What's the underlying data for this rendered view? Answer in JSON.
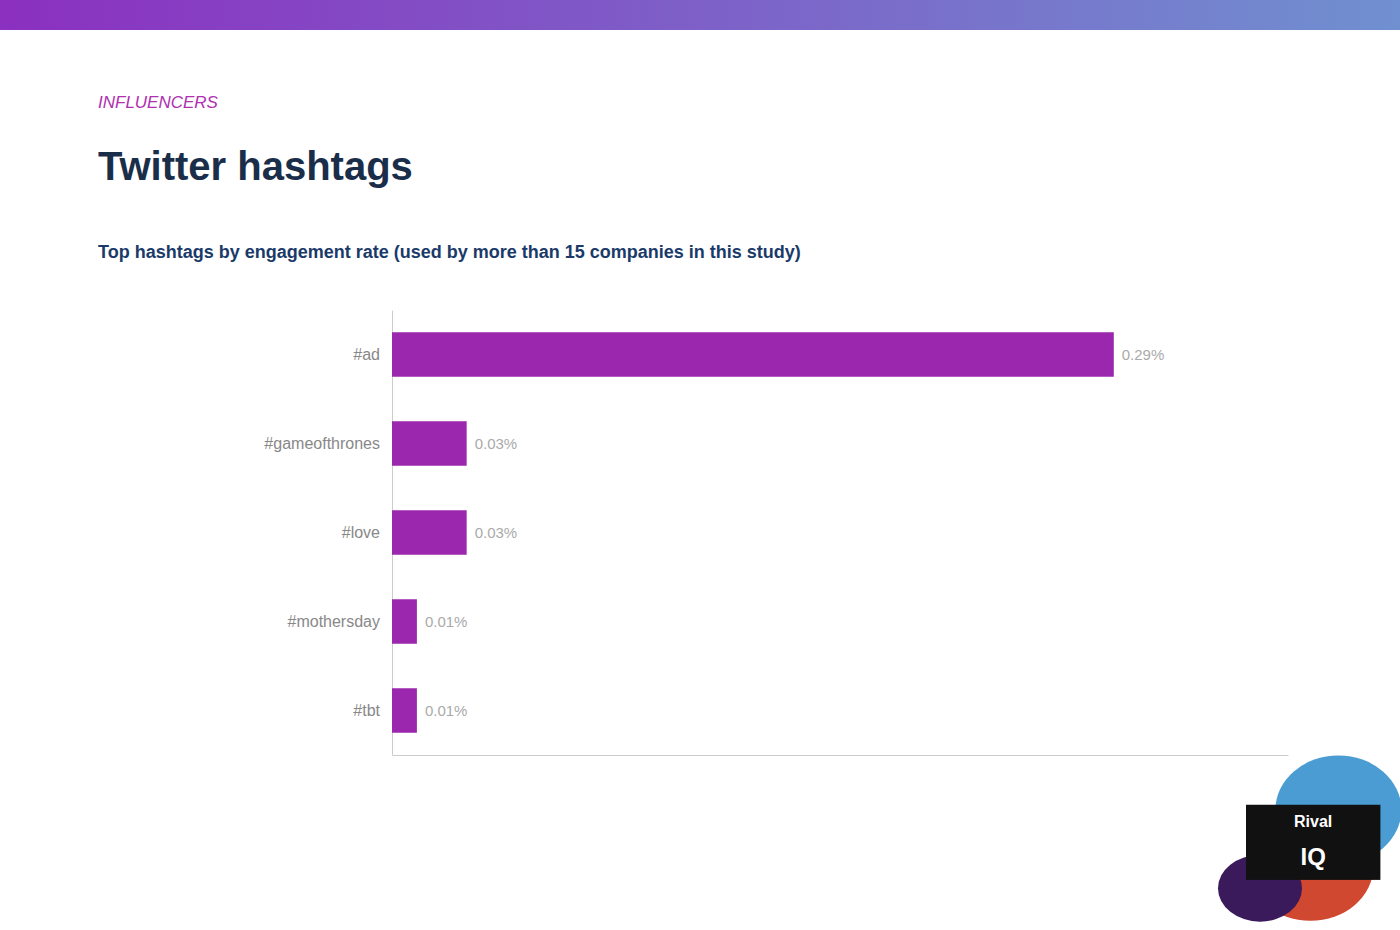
{
  "chart_data": {
    "type": "bar",
    "orientation": "horizontal",
    "title": "Twitter hashtags",
    "subtitle": "Top hashtags by engagement rate (used by more than 15 companies in this study)",
    "annotations": [
      "INFLUENCERS",
      "Rival",
      "IQ"
    ],
    "categories": [
      "#ad",
      "#gameofthrones",
      "#love",
      "#mothersday",
      "#tbt"
    ],
    "values": [
      0.29,
      0.03,
      0.03,
      0.01,
      0.01
    ],
    "value_labels": [
      "0.29%",
      "0.03%",
      "0.03%",
      "0.01%",
      "0.01%"
    ],
    "color": "#9B27AF",
    "xlim": [
      0,
      0.36
    ],
    "data_labels": true,
    "tick_labels": "y",
    "grid": false
  }
}
